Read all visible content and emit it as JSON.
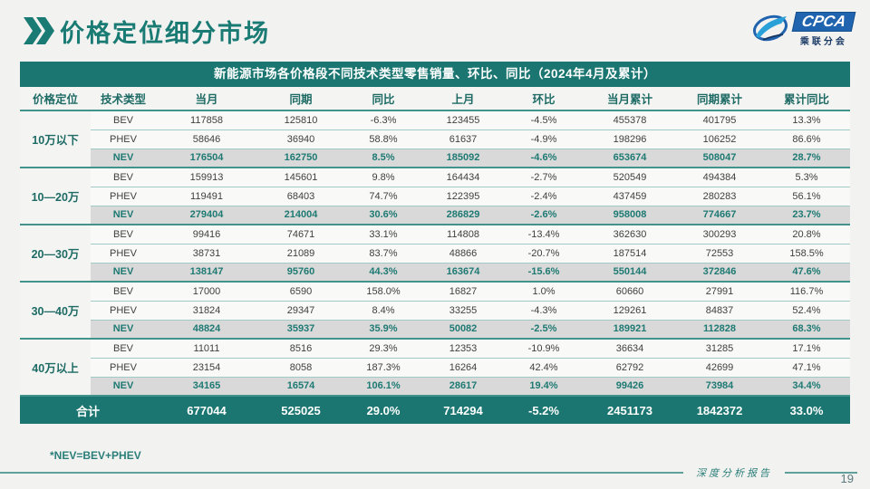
{
  "page": {
    "title": "价格定位细分市场",
    "footnote": "*NEV=BEV+PHEV",
    "footer_label": "深度分析报告",
    "page_number": "19"
  },
  "logo": {
    "acronym": "CPCA",
    "subtitle": "乘联分会"
  },
  "colors": {
    "teal": "#1b7671",
    "nev_row_bg": "#d9d9d9",
    "logo_blue": "#2063ae",
    "body_text": "#404040"
  },
  "table": {
    "banner": "新能源市场各价格段不同技术类型零售销量、环比、同比（2024年4月及累计）",
    "headers": [
      "价格定位",
      "技术类型",
      "当月",
      "同期",
      "同比",
      "上月",
      "环比",
      "当月累计",
      "同期累计",
      "累计同比"
    ],
    "sections": [
      {
        "group": "10万以下",
        "rows": [
          {
            "type": "BEV",
            "values": [
              "117858",
              "125810",
              "-6.3%",
              "123455",
              "-4.5%",
              "455378",
              "401795",
              "13.3%"
            ]
          },
          {
            "type": "PHEV",
            "values": [
              "58646",
              "36940",
              "58.8%",
              "61637",
              "-4.9%",
              "198296",
              "106252",
              "86.6%"
            ]
          },
          {
            "type": "NEV",
            "values": [
              "176504",
              "162750",
              "8.5%",
              "185092",
              "-4.6%",
              "653674",
              "508047",
              "28.7%"
            ]
          }
        ]
      },
      {
        "group": "10—20万",
        "rows": [
          {
            "type": "BEV",
            "values": [
              "159913",
              "145601",
              "9.8%",
              "164434",
              "-2.7%",
              "520549",
              "494384",
              "5.3%"
            ]
          },
          {
            "type": "PHEV",
            "values": [
              "119491",
              "68403",
              "74.7%",
              "122395",
              "-2.4%",
              "437459",
              "280283",
              "56.1%"
            ]
          },
          {
            "type": "NEV",
            "values": [
              "279404",
              "214004",
              "30.6%",
              "286829",
              "-2.6%",
              "958008",
              "774667",
              "23.7%"
            ]
          }
        ]
      },
      {
        "group": "20—30万",
        "rows": [
          {
            "type": "BEV",
            "values": [
              "99416",
              "74671",
              "33.1%",
              "114808",
              "-13.4%",
              "362630",
              "300293",
              "20.8%"
            ]
          },
          {
            "type": "PHEV",
            "values": [
              "38731",
              "21089",
              "83.7%",
              "48866",
              "-20.7%",
              "187514",
              "72553",
              "158.5%"
            ]
          },
          {
            "type": "NEV",
            "values": [
              "138147",
              "95760",
              "44.3%",
              "163674",
              "-15.6%",
              "550144",
              "372846",
              "47.6%"
            ]
          }
        ]
      },
      {
        "group": "30—40万",
        "rows": [
          {
            "type": "BEV",
            "values": [
              "17000",
              "6590",
              "158.0%",
              "16827",
              "1.0%",
              "60660",
              "27991",
              "116.7%"
            ]
          },
          {
            "type": "PHEV",
            "values": [
              "31824",
              "29347",
              "8.4%",
              "33255",
              "-4.3%",
              "129261",
              "84837",
              "52.4%"
            ]
          },
          {
            "type": "NEV",
            "values": [
              "48824",
              "35937",
              "35.9%",
              "50082",
              "-2.5%",
              "189921",
              "112828",
              "68.3%"
            ]
          }
        ]
      },
      {
        "group": "40万以上",
        "rows": [
          {
            "type": "BEV",
            "values": [
              "11011",
              "8516",
              "29.3%",
              "12353",
              "-10.9%",
              "36634",
              "31285",
              "17.1%"
            ]
          },
          {
            "type": "PHEV",
            "values": [
              "23154",
              "8058",
              "187.3%",
              "16264",
              "42.4%",
              "62792",
              "42699",
              "47.1%"
            ]
          },
          {
            "type": "NEV",
            "values": [
              "34165",
              "16574",
              "106.1%",
              "28617",
              "19.4%",
              "99426",
              "73984",
              "34.4%"
            ]
          }
        ]
      }
    ],
    "total": {
      "label": "合计",
      "values": [
        "677044",
        "525025",
        "29.0%",
        "714294",
        "-5.2%",
        "2451173",
        "1842372",
        "33.0%"
      ]
    }
  }
}
